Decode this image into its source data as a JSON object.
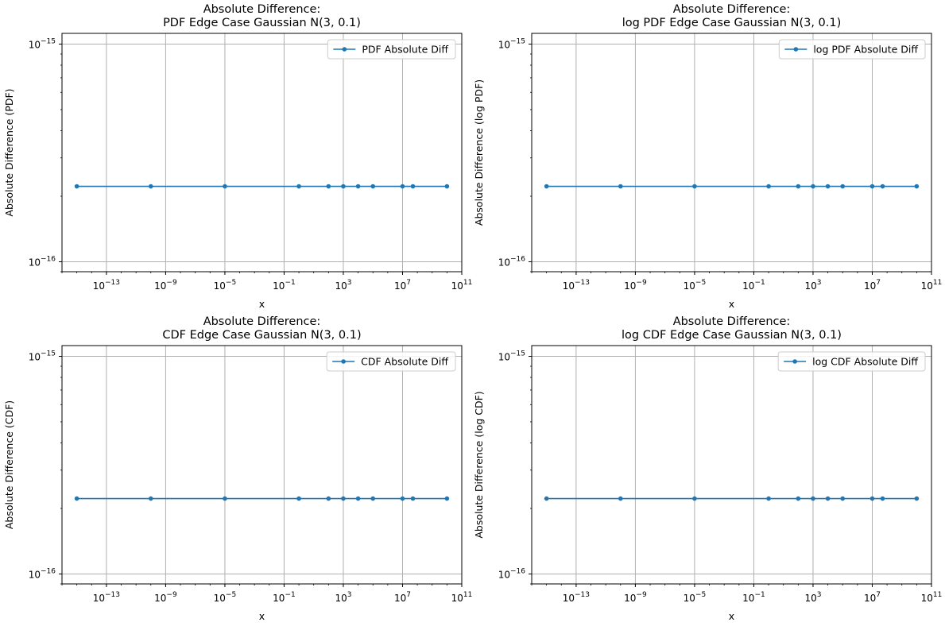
{
  "chart_data": [
    {
      "type": "line",
      "title": [
        "Absolute Difference:",
        "PDF Edge Case Gaussian N(3, 0.1)"
      ],
      "xlabel": "x",
      "ylabel": "Absolute Difference (PDF)",
      "xscale": "log",
      "yscale": "log",
      "xlim": [
        1e-16,
        100000000000.0
      ],
      "ylim": [
        9e-17,
        1.12e-15
      ],
      "x_tick_labels": [
        {
          "value": 1e-13,
          "base": "10",
          "exp": "−13"
        },
        {
          "value": 1e-09,
          "base": "10",
          "exp": "−9"
        },
        {
          "value": 1e-05,
          "base": "10",
          "exp": "−5"
        },
        {
          "value": 0.1,
          "base": "10",
          "exp": "−1"
        },
        {
          "value": 1000,
          "base": "10",
          "exp": "3"
        },
        {
          "value": 10000000.0,
          "base": "10",
          "exp": "7"
        },
        {
          "value": 100000000000.0,
          "base": "10",
          "exp": "11"
        }
      ],
      "y_tick_labels": [
        {
          "value": 1e-16,
          "base": "10",
          "exp": "−16"
        },
        {
          "value": 1e-15,
          "base": "10",
          "exp": "−15"
        }
      ],
      "grid": true,
      "legend_position": "top-right",
      "series": [
        {
          "name": "PDF Absolute Diff",
          "color": "#1f77b4",
          "marker": "circle",
          "x": [
            1e-15,
            1e-10,
            1e-05,
            1,
            100,
            1000,
            10000,
            100000,
            10000000.0,
            50000000.0,
            10000000000.0
          ],
          "y": [
            2.22e-16,
            2.22e-16,
            2.22e-16,
            2.22e-16,
            2.22e-16,
            2.22e-16,
            2.22e-16,
            2.22e-16,
            2.22e-16,
            2.22e-16,
            2.22e-16
          ]
        }
      ]
    },
    {
      "type": "line",
      "title": [
        "Absolute Difference:",
        "log PDF Edge Case Gaussian N(3, 0.1)"
      ],
      "xlabel": "x",
      "ylabel": "Absolute Difference (log PDF)",
      "xscale": "log",
      "yscale": "log",
      "xlim": [
        1e-16,
        100000000000.0
      ],
      "ylim": [
        9e-17,
        1.12e-15
      ],
      "x_tick_labels": [
        {
          "value": 1e-13,
          "base": "10",
          "exp": "−13"
        },
        {
          "value": 1e-09,
          "base": "10",
          "exp": "−9"
        },
        {
          "value": 1e-05,
          "base": "10",
          "exp": "−5"
        },
        {
          "value": 0.1,
          "base": "10",
          "exp": "−1"
        },
        {
          "value": 1000,
          "base": "10",
          "exp": "3"
        },
        {
          "value": 10000000.0,
          "base": "10",
          "exp": "7"
        },
        {
          "value": 100000000000.0,
          "base": "10",
          "exp": "11"
        }
      ],
      "y_tick_labels": [
        {
          "value": 1e-16,
          "base": "10",
          "exp": "−16"
        },
        {
          "value": 1e-15,
          "base": "10",
          "exp": "−15"
        }
      ],
      "grid": true,
      "legend_position": "top-right",
      "series": [
        {
          "name": "log PDF Absolute Diff",
          "color": "#1f77b4",
          "marker": "circle",
          "x": [
            1e-15,
            1e-10,
            1e-05,
            1,
            100,
            1000,
            10000,
            100000,
            10000000.0,
            50000000.0,
            10000000000.0
          ],
          "y": [
            2.22e-16,
            2.22e-16,
            2.22e-16,
            2.22e-16,
            2.22e-16,
            2.22e-16,
            2.22e-16,
            2.22e-16,
            2.22e-16,
            2.22e-16,
            2.22e-16
          ]
        }
      ]
    },
    {
      "type": "line",
      "title": [
        "Absolute Difference:",
        "CDF Edge Case Gaussian N(3, 0.1)"
      ],
      "xlabel": "x",
      "ylabel": "Absolute Difference (CDF)",
      "xscale": "log",
      "yscale": "log",
      "xlim": [
        1e-16,
        100000000000.0
      ],
      "ylim": [
        9e-17,
        1.12e-15
      ],
      "x_tick_labels": [
        {
          "value": 1e-13,
          "base": "10",
          "exp": "−13"
        },
        {
          "value": 1e-09,
          "base": "10",
          "exp": "−9"
        },
        {
          "value": 1e-05,
          "base": "10",
          "exp": "−5"
        },
        {
          "value": 0.1,
          "base": "10",
          "exp": "−1"
        },
        {
          "value": 1000,
          "base": "10",
          "exp": "3"
        },
        {
          "value": 10000000.0,
          "base": "10",
          "exp": "7"
        },
        {
          "value": 100000000000.0,
          "base": "10",
          "exp": "11"
        }
      ],
      "y_tick_labels": [
        {
          "value": 1e-16,
          "base": "10",
          "exp": "−16"
        },
        {
          "value": 1e-15,
          "base": "10",
          "exp": "−15"
        }
      ],
      "grid": true,
      "legend_position": "top-right",
      "series": [
        {
          "name": "CDF Absolute Diff",
          "color": "#1f77b4",
          "marker": "circle",
          "x": [
            1e-15,
            1e-10,
            1e-05,
            1,
            100,
            1000,
            10000,
            100000,
            10000000.0,
            50000000.0,
            10000000000.0
          ],
          "y": [
            2.22e-16,
            2.22e-16,
            2.22e-16,
            2.22e-16,
            2.22e-16,
            2.22e-16,
            2.22e-16,
            2.22e-16,
            2.22e-16,
            2.22e-16,
            2.22e-16
          ]
        }
      ]
    },
    {
      "type": "line",
      "title": [
        "Absolute Difference:",
        "log CDF Edge Case Gaussian N(3, 0.1)"
      ],
      "xlabel": "x",
      "ylabel": "Absolute Difference (log CDF)",
      "xscale": "log",
      "yscale": "log",
      "xlim": [
        1e-16,
        100000000000.0
      ],
      "ylim": [
        9e-17,
        1.12e-15
      ],
      "x_tick_labels": [
        {
          "value": 1e-13,
          "base": "10",
          "exp": "−13"
        },
        {
          "value": 1e-09,
          "base": "10",
          "exp": "−9"
        },
        {
          "value": 1e-05,
          "base": "10",
          "exp": "−5"
        },
        {
          "value": 0.1,
          "base": "10",
          "exp": "−1"
        },
        {
          "value": 1000,
          "base": "10",
          "exp": "3"
        },
        {
          "value": 10000000.0,
          "base": "10",
          "exp": "7"
        },
        {
          "value": 100000000000.0,
          "base": "10",
          "exp": "11"
        }
      ],
      "y_tick_labels": [
        {
          "value": 1e-16,
          "base": "10",
          "exp": "−16"
        },
        {
          "value": 1e-15,
          "base": "10",
          "exp": "−15"
        }
      ],
      "grid": true,
      "legend_position": "top-right",
      "series": [
        {
          "name": "log CDF Absolute Diff",
          "color": "#1f77b4",
          "marker": "circle",
          "x": [
            1e-15,
            1e-10,
            1e-05,
            1,
            100,
            1000,
            10000,
            100000,
            10000000.0,
            50000000.0,
            10000000000.0
          ],
          "y": [
            2.22e-16,
            2.22e-16,
            2.22e-16,
            2.22e-16,
            2.22e-16,
            2.22e-16,
            2.22e-16,
            2.22e-16,
            2.22e-16,
            2.22e-16,
            2.22e-16
          ]
        }
      ]
    }
  ],
  "colors": {
    "grid": "#b0b0b0",
    "axes": "#000000",
    "legend_border": "#cccccc"
  }
}
